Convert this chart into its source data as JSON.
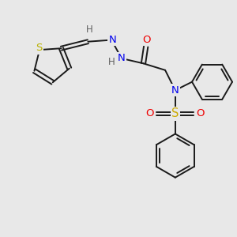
{
  "background_color": "#e8e8e8",
  "bond_color": "#1a1a1a",
  "atom_colors": {
    "S_thio": "#b8b000",
    "S_sulfo": "#ccaa00",
    "N": "#0000ee",
    "O": "#ee0000",
    "H": "#606060",
    "C": "#1a1a1a"
  },
  "figsize": [
    3.0,
    3.0
  ],
  "dpi": 100
}
